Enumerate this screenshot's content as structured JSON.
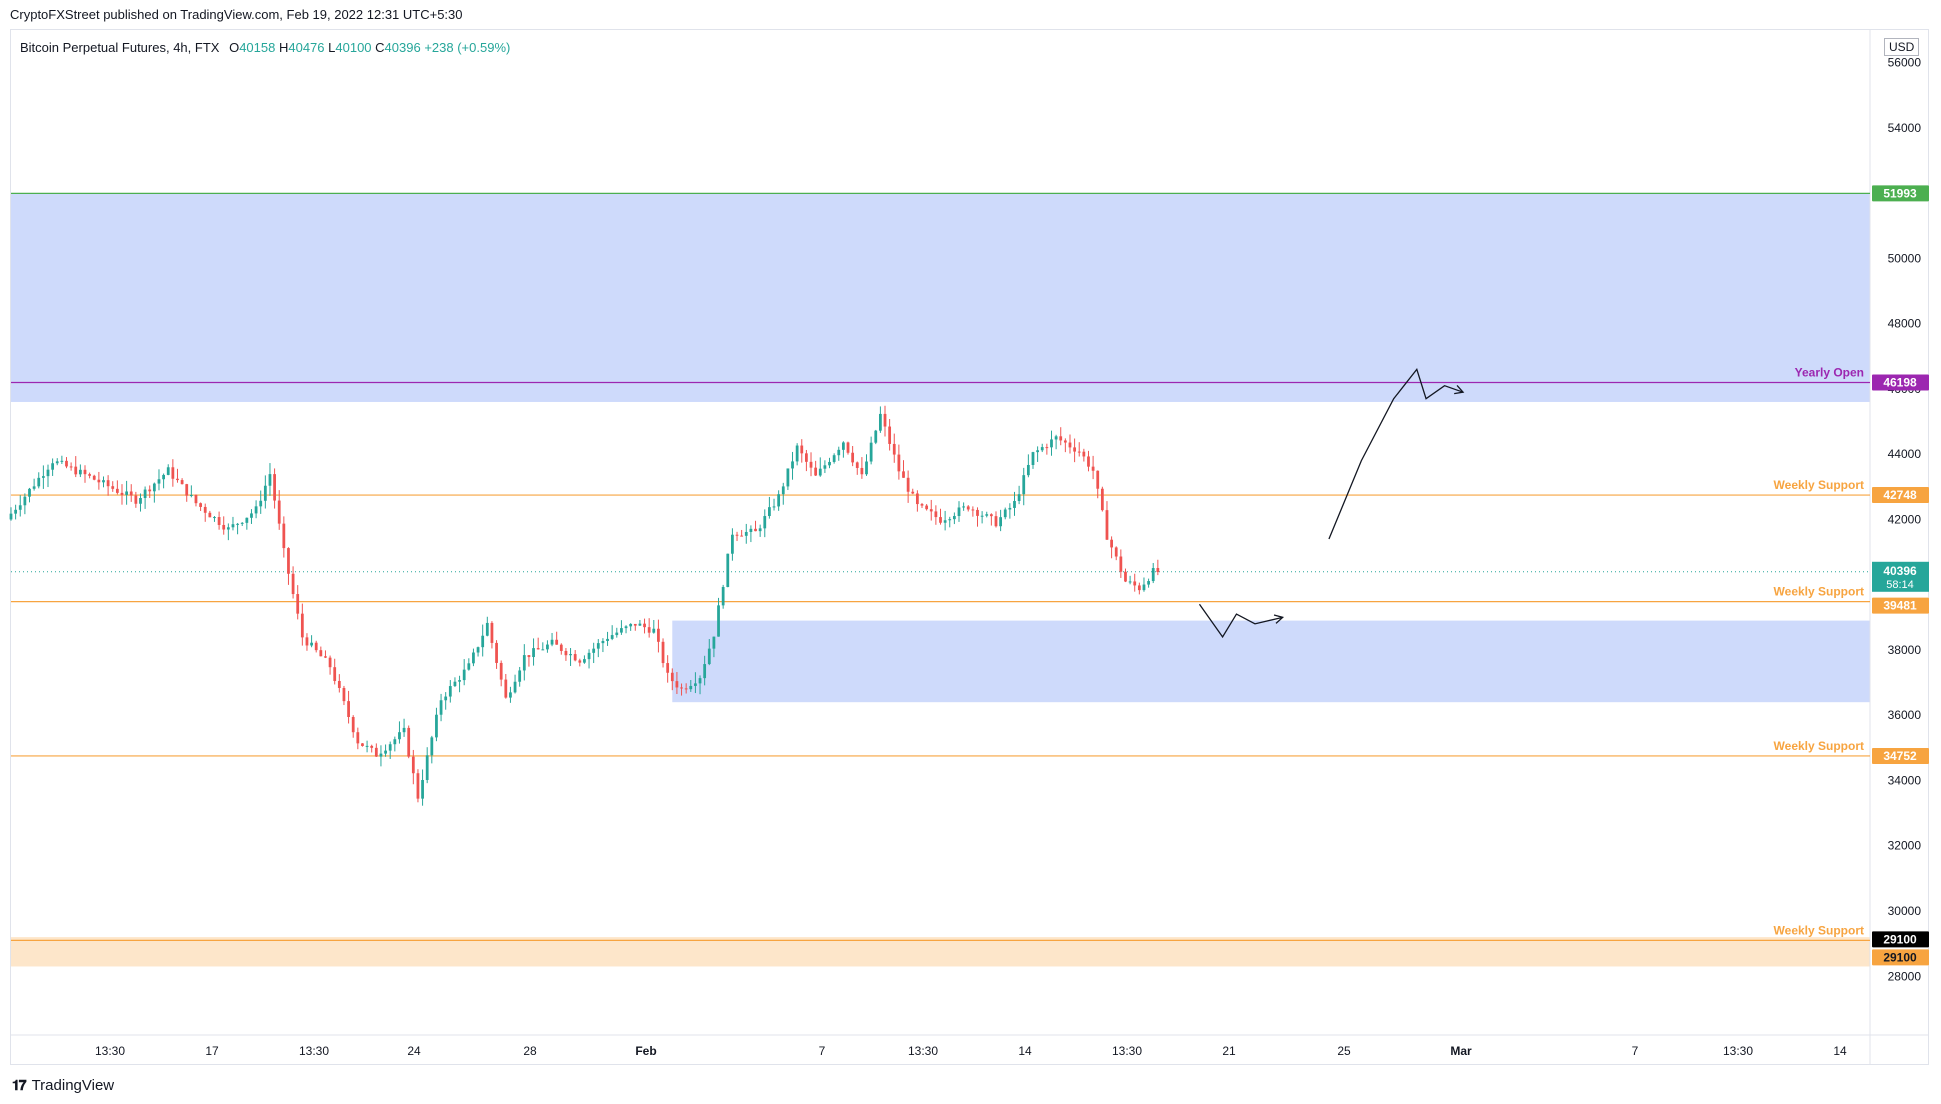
{
  "publish_line": "CryptoFXStreet published on TradingView.com, Feb 19, 2022 12:31 UTC+5:30",
  "header": {
    "symbol": "Bitcoin Perpetual Futures, 4h, FTX",
    "open_label": "O",
    "open": "40158",
    "high_label": "H",
    "high": "40476",
    "low_label": "L",
    "low": "40100",
    "close_label": "C",
    "close": "40396",
    "change": "+238 (+0.59%)"
  },
  "currency": "USD",
  "footer_brand": "TradingView",
  "colors": {
    "up": "#26a69a",
    "down": "#ef5350",
    "zone_blue": "#c9d6fb",
    "zone_orange": "#fde3c4",
    "support_line": "#f7a440",
    "yearly_open": "#9c27b0",
    "resistance_line": "#4caf50",
    "current_price": "#26a69a"
  },
  "chart_data": {
    "type": "candlestick",
    "title": "Bitcoin Perpetual Futures, 4h, FTX",
    "xlabel": "",
    "ylabel": "",
    "ylim": [
      26200,
      57000
    ],
    "y_ticks": [
      28000,
      30000,
      32000,
      34000,
      36000,
      38000,
      40000,
      42000,
      44000,
      46000,
      48000,
      50000,
      52000,
      54000,
      56000
    ],
    "x_ticks": [
      "13:30",
      "17",
      "13:30",
      "24",
      "28",
      "Feb",
      "7",
      "13:30",
      "14",
      "13:30",
      "21",
      "25",
      "Mar",
      "7",
      "13:30",
      "14"
    ],
    "levels": [
      {
        "value": 51993,
        "label": "",
        "price_tag": "51993",
        "color": "#4caf50"
      },
      {
        "value": 46198,
        "label": "Yearly Open",
        "price_tag": "46198",
        "color": "#9c27b0"
      },
      {
        "value": 42748,
        "label": "Weekly Support",
        "price_tag": "42748",
        "color": "#f7a440"
      },
      {
        "value": 39481,
        "label": "Weekly Support",
        "price_tag": "39481",
        "color": "#f7a440"
      },
      {
        "value": 34752,
        "label": "Weekly Support",
        "price_tag": "34752",
        "color": "#f7a440"
      },
      {
        "value": 29100,
        "label": "Weekly Support",
        "price_tag": "29100",
        "color": "#f7a440"
      }
    ],
    "zones": [
      {
        "from": 45600,
        "to": 52000,
        "color": "blue"
      },
      {
        "from": 36400,
        "to": 38900,
        "color": "blue"
      },
      {
        "from": 28300,
        "to": 29200,
        "color": "orange"
      }
    ],
    "current_price": {
      "value": 40396,
      "label": "40396",
      "countdown": "58:14"
    },
    "secondary_tag_29100": "29100",
    "price_path": [
      [
        0,
        42000
      ],
      [
        10,
        43800
      ],
      [
        18,
        43300
      ],
      [
        28,
        42600
      ],
      [
        35,
        43500
      ],
      [
        41,
        42500
      ],
      [
        48,
        41700
      ],
      [
        54,
        42300
      ],
      [
        57,
        43400
      ],
      [
        60,
        41000
      ],
      [
        64,
        38400
      ],
      [
        70,
        37500
      ],
      [
        76,
        35200
      ],
      [
        80,
        34800
      ],
      [
        86,
        35500
      ],
      [
        89,
        33500
      ],
      [
        94,
        36500
      ],
      [
        100,
        37500
      ],
      [
        104,
        38800
      ],
      [
        108,
        36500
      ],
      [
        112,
        37800
      ],
      [
        118,
        38200
      ],
      [
        124,
        37700
      ],
      [
        130,
        38400
      ],
      [
        136,
        38800
      ],
      [
        140,
        38600
      ],
      [
        143,
        37200
      ],
      [
        146,
        36800
      ],
      [
        150,
        37200
      ],
      [
        153,
        38500
      ],
      [
        157,
        41600
      ],
      [
        162,
        41600
      ],
      [
        167,
        42700
      ],
      [
        171,
        44200
      ],
      [
        175,
        43300
      ],
      [
        181,
        44400
      ],
      [
        185,
        43300
      ],
      [
        189,
        45200
      ],
      [
        193,
        43500
      ],
      [
        197,
        42400
      ],
      [
        202,
        42000
      ],
      [
        208,
        42400
      ],
      [
        214,
        41900
      ],
      [
        218,
        42500
      ],
      [
        222,
        44000
      ],
      [
        227,
        44500
      ],
      [
        232,
        44100
      ],
      [
        235,
        43500
      ],
      [
        238,
        41500
      ],
      [
        242,
        40100
      ],
      [
        245,
        39900
      ],
      [
        248,
        40396
      ]
    ],
    "projection_down": [
      [
        257,
        39400
      ],
      [
        262,
        38400
      ],
      [
        265,
        39100
      ],
      [
        269,
        38800
      ],
      [
        275,
        39000
      ]
    ],
    "projection_up": [
      [
        285,
        41400
      ],
      [
        292,
        43800
      ],
      [
        299,
        45700
      ],
      [
        304,
        46600
      ],
      [
        306,
        45700
      ],
      [
        310,
        46100
      ],
      [
        314,
        45900
      ]
    ],
    "x_max_index": 402
  }
}
